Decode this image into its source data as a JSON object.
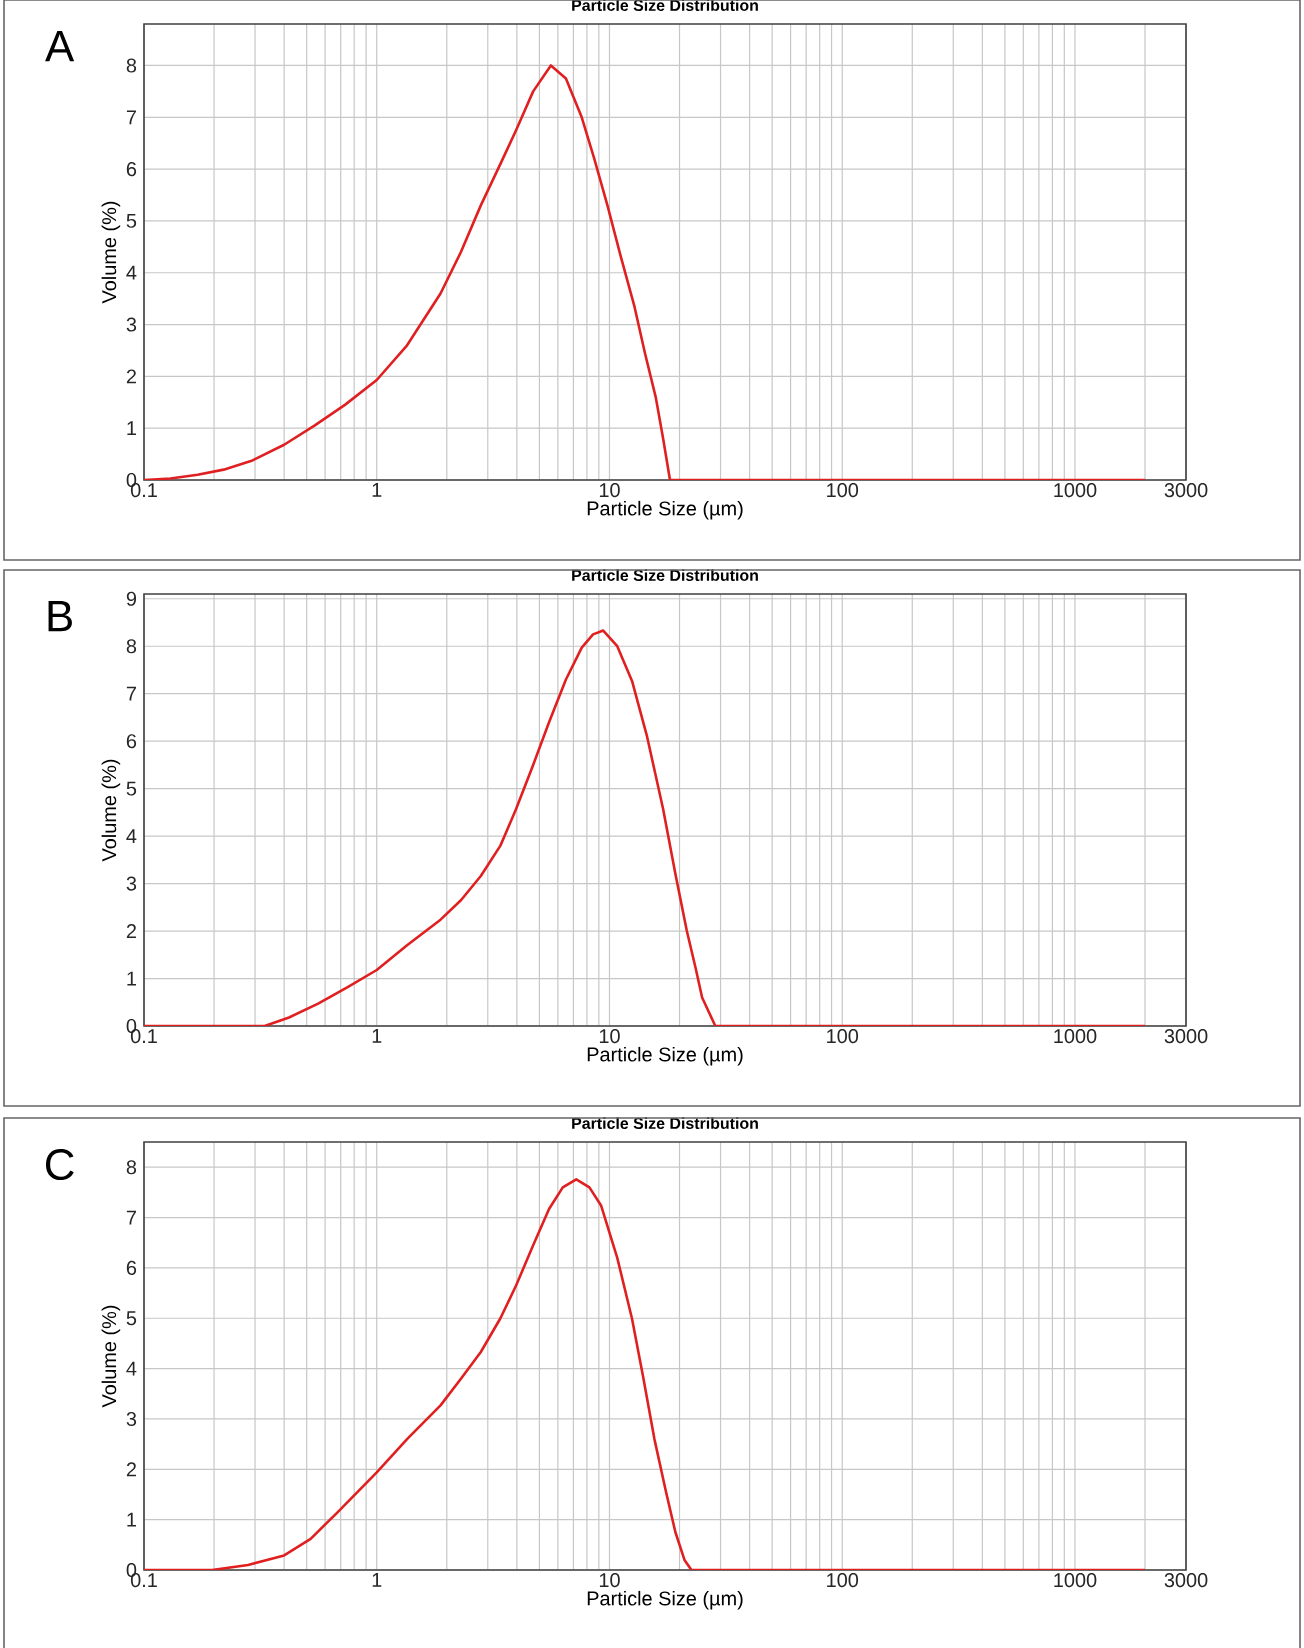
{
  "chart_data": [
    {
      "type": "line",
      "title": "Particle Size Distribution",
      "xlabel": "Particle Size (µm)",
      "ylabel": "Volume (%)",
      "annotations": [
        "A"
      ],
      "log": "x",
      "grid": true,
      "marker": "none",
      "line_style": "solid",
      "xlim": [
        0.1,
        3000
      ],
      "xticks": [
        0.1,
        1,
        10,
        100,
        1000,
        3000
      ],
      "ylim": [
        0,
        8.8
      ],
      "yticks": [
        0,
        1,
        2,
        3,
        4,
        5,
        6,
        7,
        8
      ],
      "series": [
        {
          "color": "#e02020",
          "x": [
            0.1,
            0.13,
            0.17,
            0.22,
            0.29,
            0.4,
            0.54,
            0.73,
            1.0,
            1.35,
            1.88,
            2.3,
            2.8,
            3.4,
            3.97,
            4.7,
            5.6,
            6.5,
            7.6,
            8.6,
            9.8,
            11.2,
            12.8,
            14.2,
            15.8,
            17.0,
            18.2,
            30,
            100,
            500,
            2000
          ],
          "values": [
            0,
            0.03,
            0.1,
            0.2,
            0.37,
            0.68,
            1.05,
            1.45,
            1.93,
            2.6,
            3.6,
            4.4,
            5.3,
            6.1,
            6.75,
            7.5,
            8.0,
            7.75,
            7.0,
            6.2,
            5.3,
            4.3,
            3.35,
            2.45,
            1.6,
            0.8,
            0,
            0,
            0,
            0,
            0
          ]
        }
      ]
    },
    {
      "type": "line",
      "title": "Particle Size Distribution",
      "xlabel": "Particle Size (µm)",
      "ylabel": "Volume (%)",
      "annotations": [
        "B"
      ],
      "log": "x",
      "grid": true,
      "marker": "none",
      "line_style": "solid",
      "xlim": [
        0.1,
        3000
      ],
      "xticks": [
        0.1,
        1,
        10,
        100,
        1000,
        3000
      ],
      "ylim": [
        0,
        9.1
      ],
      "yticks": [
        0,
        1,
        2,
        3,
        4,
        5,
        6,
        7,
        8,
        9
      ],
      "series": [
        {
          "color": "#e02020",
          "x": [
            0.1,
            0.2,
            0.33,
            0.42,
            0.56,
            0.75,
            1.0,
            1.35,
            1.88,
            2.3,
            2.8,
            3.4,
            3.97,
            4.7,
            5.5,
            6.5,
            7.6,
            8.5,
            9.4,
            10.8,
            12.5,
            14.5,
            17.0,
            19.2,
            21.5,
            23.5,
            25,
            28.5,
            100,
            500,
            2000
          ],
          "values": [
            0,
            0,
            0,
            0.18,
            0.47,
            0.82,
            1.18,
            1.7,
            2.24,
            2.65,
            3.16,
            3.8,
            4.57,
            5.5,
            6.4,
            7.3,
            7.97,
            8.25,
            8.33,
            8.0,
            7.27,
            6.1,
            4.57,
            3.2,
            2.0,
            1.2,
            0.6,
            0,
            0,
            0,
            0
          ]
        }
      ]
    },
    {
      "type": "line",
      "title": "Particle Size Distribution",
      "xlabel": "Particle Size (µm)",
      "ylabel": "Volume (%)",
      "annotations": [
        "C"
      ],
      "log": "x",
      "grid": true,
      "marker": "none",
      "line_style": "solid",
      "xlim": [
        0.1,
        3000
      ],
      "xticks": [
        0.1,
        1,
        10,
        100,
        1000,
        3000
      ],
      "ylim": [
        0,
        8.5
      ],
      "yticks": [
        0,
        1,
        2,
        3,
        4,
        5,
        6,
        7,
        8
      ],
      "series": [
        {
          "color": "#e02020",
          "x": [
            0.1,
            0.196,
            0.28,
            0.4,
            0.52,
            0.68,
            1.0,
            1.35,
            1.88,
            2.3,
            2.8,
            3.4,
            3.97,
            4.7,
            5.5,
            6.3,
            7.2,
            8.2,
            9.2,
            10.8,
            12.5,
            14.0,
            15.6,
            17.5,
            19.2,
            21.0,
            22.5,
            100,
            500,
            2000
          ],
          "values": [
            0,
            0,
            0.1,
            0.29,
            0.62,
            1.15,
            1.94,
            2.6,
            3.27,
            3.8,
            4.33,
            5.0,
            5.65,
            6.45,
            7.17,
            7.6,
            7.76,
            7.6,
            7.24,
            6.2,
            4.99,
            3.8,
            2.6,
            1.55,
            0.75,
            0.2,
            0,
            0,
            0,
            0
          ]
        }
      ]
    }
  ]
}
